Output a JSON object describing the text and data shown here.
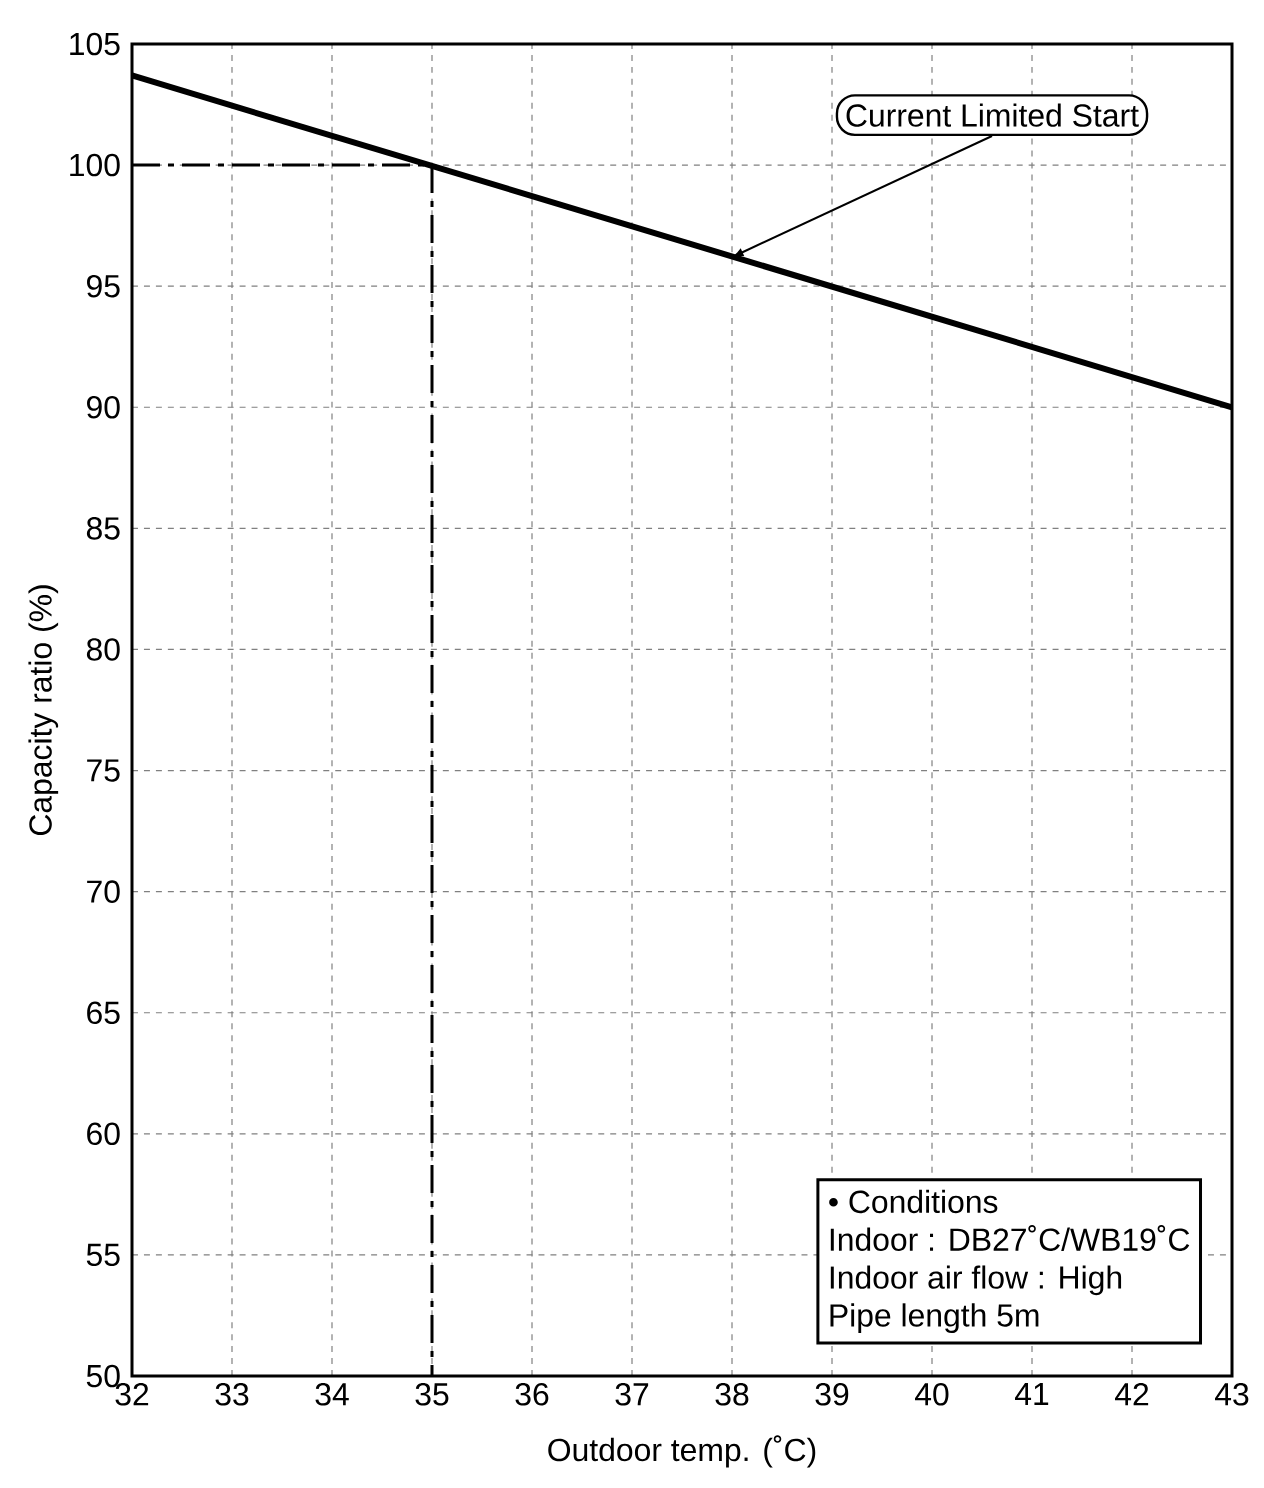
{
  "chart_data": {
    "type": "line",
    "xlabel": "Outdoor temp. (˚C)",
    "ylabel": "Capacity ratio (%)",
    "x": [
      32,
      43
    ],
    "series": [
      {
        "color": "#000000",
        "values": [
          103.7,
          90.0
        ]
      }
    ],
    "ref_lines": [
      {
        "axis": "y",
        "value": 100,
        "color": "#000000",
        "line_style": "dashed"
      },
      {
        "axis": "x",
        "value": 35,
        "color": "#000000",
        "line_style": "dashed"
      }
    ],
    "xlim": [
      32,
      43
    ],
    "ylim": [
      50,
      105
    ],
    "xticks": [
      32,
      33,
      34,
      35,
      36,
      37,
      38,
      39,
      40,
      41,
      42,
      43
    ],
    "yticks": [
      50,
      55,
      60,
      65,
      70,
      75,
      80,
      85,
      90,
      95,
      100,
      105
    ],
    "grid": true,
    "marker": "none",
    "line_style": "solid",
    "annotations": [
      {
        "text": "Current Limited Start",
        "x": 38,
        "y": 96.2
      },
      "• Conditions",
      "Indoor : DB27˚C/WB19˚C",
      "Indoor air flow : High",
      "Pipe length 5m"
    ]
  }
}
